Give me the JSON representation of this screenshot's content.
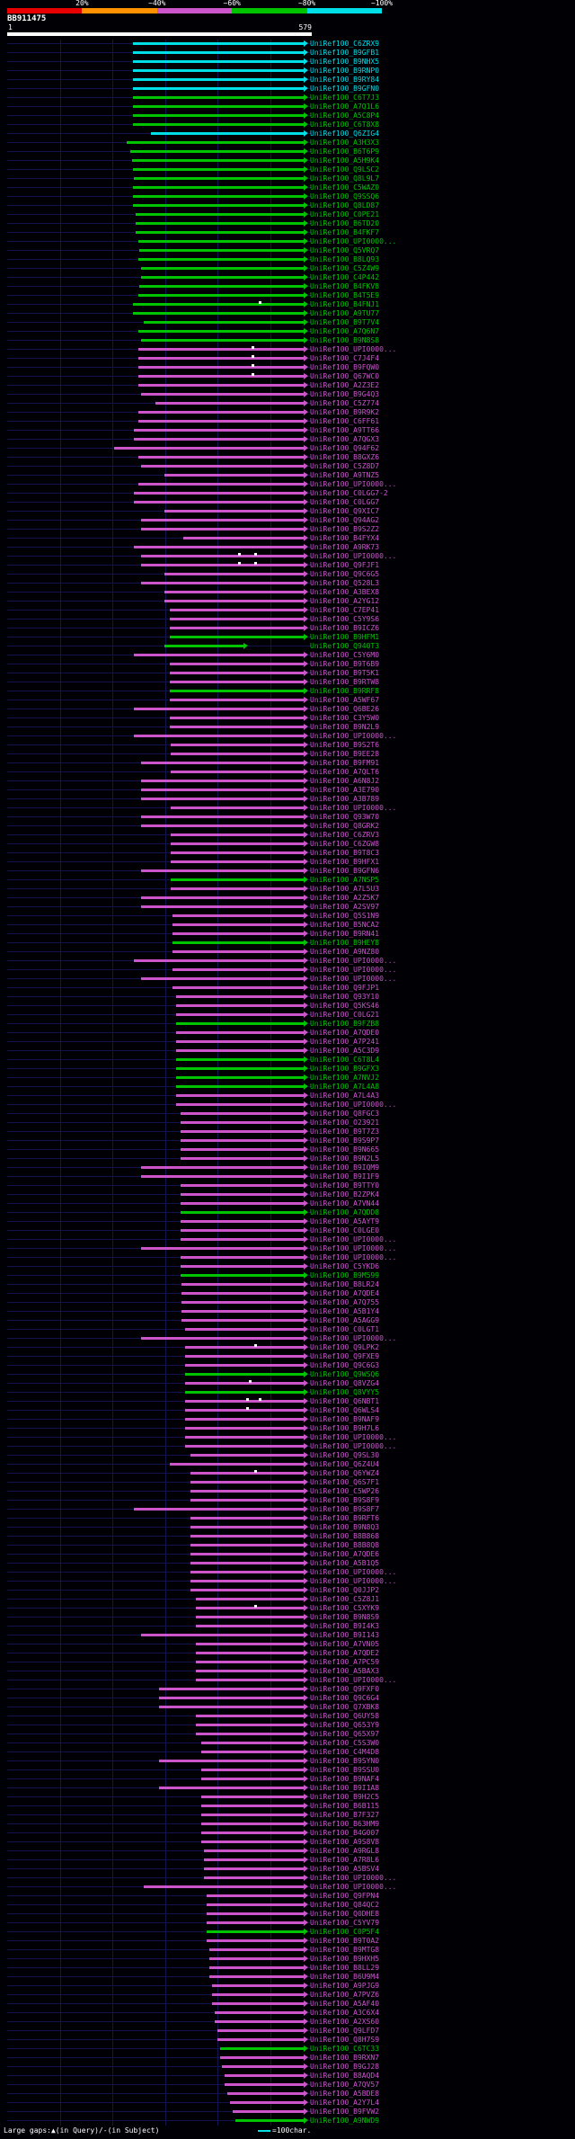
{
  "palette": {
    "cy": "#00dfe8",
    "gr": "#00c400",
    "mg": "#cc55cc",
    "rd": "#e80000",
    "or": "#ff9100",
    "white": "#ffffff",
    "baseline": "#12124f"
  },
  "chart_data": {
    "type": "bar",
    "orientation": "horizontal",
    "title": "BB911475",
    "x_axis": {
      "label_start": "1",
      "label_end": "579",
      "min": 1,
      "max": 579,
      "unit": "char",
      "gridlines": [
        100,
        200,
        300,
        400,
        500
      ]
    },
    "identity_scale": {
      "labels": [
        "20%",
        "~40%",
        "~60%",
        "~80%",
        "~100%"
      ],
      "segments": [
        "rd",
        "or",
        "mg",
        "gr",
        "cy"
      ]
    },
    "bars_prefix": "UniRef100_",
    "bars": [
      {
        "id": "C6ZRX9",
        "c": "cy",
        "s": 240
      },
      {
        "id": "B9GFB1",
        "c": "cy",
        "s": 240
      },
      {
        "id": "B9NHX5",
        "c": "cy",
        "s": 240
      },
      {
        "id": "B9RNP0",
        "c": "cy",
        "s": 240
      },
      {
        "id": "B9RY84",
        "c": "cy",
        "s": 240
      },
      {
        "id": "B9GFN0",
        "c": "cy",
        "s": 240
      },
      {
        "id": "C6T7J3",
        "c": "gr",
        "s": 240
      },
      {
        "id": "A7Q1L6",
        "c": "gr",
        "s": 240
      },
      {
        "id": "A5C8P4",
        "c": "gr",
        "s": 240
      },
      {
        "id": "C6T8X8",
        "c": "gr",
        "s": 240
      },
      {
        "id": "Q6ZIG4",
        "c": "cy",
        "s": 275
      },
      {
        "id": "A3H3X3",
        "c": "gr",
        "s": 228
      },
      {
        "id": "B6T6P9",
        "c": "gr",
        "s": 235
      },
      {
        "id": "A5H9K4",
        "c": "gr",
        "s": 238
      },
      {
        "id": "Q9LSC2",
        "c": "gr",
        "s": 240
      },
      {
        "id": "Q8L9L7",
        "c": "gr",
        "s": 242
      },
      {
        "id": "C5WAZ0",
        "c": "gr",
        "s": 240
      },
      {
        "id": "Q9SSQ6",
        "c": "gr",
        "s": 240
      },
      {
        "id": "Q8LD87",
        "c": "gr",
        "s": 240
      },
      {
        "id": "C0PE21",
        "c": "gr",
        "s": 246
      },
      {
        "id": "B6TD20",
        "c": "gr",
        "s": 246
      },
      {
        "id": "B4FKF7",
        "c": "gr",
        "s": 246
      },
      {
        "id": "UPI0000...",
        "c": "gr",
        "s": 250
      },
      {
        "id": "Q5VRQ7",
        "c": "gr",
        "s": 252
      },
      {
        "id": "B8LQ93",
        "c": "gr",
        "s": 250
      },
      {
        "id": "C5Z4W9",
        "c": "gr",
        "s": 255
      },
      {
        "id": "C4P442",
        "c": "gr",
        "s": 255
      },
      {
        "id": "B4FKV8",
        "c": "gr",
        "s": 252
      },
      {
        "id": "B4T5E9",
        "c": "gr",
        "s": 250
      },
      {
        "id": "B4FNJ1",
        "c": "gr",
        "s": 240,
        "g": [
          480
        ]
      },
      {
        "id": "A9TU77",
        "c": "gr",
        "s": 240
      },
      {
        "id": "B9T7V4",
        "c": "gr",
        "s": 260
      },
      {
        "id": "A7Q6N7",
        "c": "gr",
        "s": 250
      },
      {
        "id": "B9N8S8",
        "c": "gr",
        "s": 255
      },
      {
        "id": "UPI0000...",
        "c": "mg",
        "s": 250,
        "g": [
          465
        ]
      },
      {
        "id": "C7J4F4",
        "c": "mg",
        "s": 250,
        "g": [
          465
        ]
      },
      {
        "id": "B9FQW0",
        "c": "mg",
        "s": 250,
        "g": [
          465
        ]
      },
      {
        "id": "Q67WC0",
        "c": "mg",
        "s": 250,
        "g": [
          465
        ]
      },
      {
        "id": "A2Z3E2",
        "c": "mg",
        "s": 250
      },
      {
        "id": "B9G4Q3",
        "c": "mg",
        "s": 255
      },
      {
        "id": "C5Z774",
        "c": "mg",
        "s": 282
      },
      {
        "id": "B9R9K2",
        "c": "mg",
        "s": 250
      },
      {
        "id": "C6FF61",
        "c": "mg",
        "s": 250
      },
      {
        "id": "A9TT66",
        "c": "mg",
        "s": 242
      },
      {
        "id": "A7QGX3",
        "c": "mg",
        "s": 242
      },
      {
        "id": "Q94F62",
        "c": "mg",
        "s": 205
      },
      {
        "id": "B8GXZ6",
        "c": "mg",
        "s": 250
      },
      {
        "id": "C5Z8D7",
        "c": "mg",
        "s": 256
      },
      {
        "id": "A9TNZ5",
        "c": "mg",
        "s": 300
      },
      {
        "id": "UPI0000...",
        "c": "mg",
        "s": 250
      },
      {
        "id": "C0LGG7-2",
        "c": "mg",
        "s": 242
      },
      {
        "id": "C0LGG7",
        "c": "mg",
        "s": 242
      },
      {
        "id": "Q9XIC7",
        "c": "mg",
        "s": 300
      },
      {
        "id": "Q94AG2",
        "c": "mg",
        "s": 256
      },
      {
        "id": "B9S2Z2",
        "c": "mg",
        "s": 256
      },
      {
        "id": "B4FYX4",
        "c": "mg",
        "s": 335
      },
      {
        "id": "A9RK73",
        "c": "mg",
        "s": 242
      },
      {
        "id": "UPI0000...",
        "c": "mg",
        "s": 256,
        "g": [
          440,
          470
        ]
      },
      {
        "id": "Q9FJF1",
        "c": "mg",
        "s": 256,
        "g": [
          440,
          470
        ]
      },
      {
        "id": "Q9C6G5",
        "c": "mg",
        "s": 300
      },
      {
        "id": "Q528L3",
        "c": "mg",
        "s": 256
      },
      {
        "id": "A3BEX8",
        "c": "mg",
        "s": 300
      },
      {
        "id": "A2YG12",
        "c": "mg",
        "s": 300
      },
      {
        "id": "C7EP41",
        "c": "mg",
        "s": 310
      },
      {
        "id": "C5Y9S6",
        "c": "mg",
        "s": 310
      },
      {
        "id": "B9ICZ6",
        "c": "mg",
        "s": 310
      },
      {
        "id": "B9HFM1",
        "c": "gr",
        "s": 310
      },
      {
        "id": "Q940T3",
        "c": "gr",
        "s": 300,
        "e": 450
      },
      {
        "id": "C5Y6M0",
        "c": "mg",
        "s": 242
      },
      {
        "id": "B9T6B9",
        "c": "mg",
        "s": 310
      },
      {
        "id": "B9T5K1",
        "c": "mg",
        "s": 310
      },
      {
        "id": "B9RTW8",
        "c": "mg",
        "s": 310
      },
      {
        "id": "B9RRF8",
        "c": "gr",
        "s": 310
      },
      {
        "id": "A5WF67",
        "c": "mg",
        "s": 310
      },
      {
        "id": "Q6BE26",
        "c": "mg",
        "s": 242
      },
      {
        "id": "C3Y5W0",
        "c": "mg",
        "s": 310
      },
      {
        "id": "B9N2L9",
        "c": "mg",
        "s": 310
      },
      {
        "id": "UPI0000...",
        "c": "mg",
        "s": 242
      },
      {
        "id": "B9S2T6",
        "c": "mg",
        "s": 312
      },
      {
        "id": "B9EE28",
        "c": "mg",
        "s": 312
      },
      {
        "id": "B9FM91",
        "c": "mg",
        "s": 256
      },
      {
        "id": "A7QLT6",
        "c": "mg",
        "s": 312
      },
      {
        "id": "A6N8J2",
        "c": "mg",
        "s": 256
      },
      {
        "id": "A3E790",
        "c": "mg",
        "s": 256
      },
      {
        "id": "A3B789",
        "c": "mg",
        "s": 256
      },
      {
        "id": "UPI0000...",
        "c": "mg",
        "s": 312
      },
      {
        "id": "Q93W70",
        "c": "mg",
        "s": 256
      },
      {
        "id": "Q8GRK2",
        "c": "mg",
        "s": 256
      },
      {
        "id": "C6ZRV3",
        "c": "mg",
        "s": 312
      },
      {
        "id": "C6ZGW8",
        "c": "mg",
        "s": 312
      },
      {
        "id": "B9T8C3",
        "c": "mg",
        "s": 312
      },
      {
        "id": "B9HFX1",
        "c": "mg",
        "s": 312
      },
      {
        "id": "B9GFN6",
        "c": "mg",
        "s": 256
      },
      {
        "id": "A7NSP5",
        "c": "gr",
        "s": 312
      },
      {
        "id": "A7L5U3",
        "c": "mg",
        "s": 312
      },
      {
        "id": "A2Z5K7",
        "c": "mg",
        "s": 256
      },
      {
        "id": "A2SV97",
        "c": "mg",
        "s": 256
      },
      {
        "id": "Q5S1N9",
        "c": "mg",
        "s": 315
      },
      {
        "id": "B5NCA2",
        "c": "mg",
        "s": 315
      },
      {
        "id": "B9RN41",
        "c": "mg",
        "s": 315
      },
      {
        "id": "B9HEY8",
        "c": "gr",
        "s": 315
      },
      {
        "id": "A9NZ80",
        "c": "mg",
        "s": 315
      },
      {
        "id": "UPI0000...",
        "c": "mg",
        "s": 242
      },
      {
        "id": "UPI0000...",
        "c": "mg",
        "s": 315
      },
      {
        "id": "UPI0000...",
        "c": "mg",
        "s": 256
      },
      {
        "id": "Q9FJP1",
        "c": "mg",
        "s": 315
      },
      {
        "id": "Q93Y10",
        "c": "mg",
        "s": 322
      },
      {
        "id": "Q5KS46",
        "c": "mg",
        "s": 322
      },
      {
        "id": "C0LG21",
        "c": "mg",
        "s": 322
      },
      {
        "id": "B9FZB8",
        "c": "gr",
        "s": 322
      },
      {
        "id": "A7QDE0",
        "c": "mg",
        "s": 322
      },
      {
        "id": "A7P241",
        "c": "mg",
        "s": 322
      },
      {
        "id": "A5C3D9",
        "c": "mg",
        "s": 322
      },
      {
        "id": "C6T8L4",
        "c": "gr",
        "s": 322
      },
      {
        "id": "B9GFX3",
        "c": "gr",
        "s": 322
      },
      {
        "id": "A7NVJ2",
        "c": "gr",
        "s": 322
      },
      {
        "id": "A7L4A8",
        "c": "gr",
        "s": 322
      },
      {
        "id": "A7L4A3",
        "c": "mg",
        "s": 322
      },
      {
        "id": "UPI0000...",
        "c": "mg",
        "s": 322
      },
      {
        "id": "Q8FGC3",
        "c": "mg",
        "s": 330
      },
      {
        "id": "O23921",
        "c": "mg",
        "s": 330
      },
      {
        "id": "B9T7Z3",
        "c": "mg",
        "s": 330
      },
      {
        "id": "B9S9P7",
        "c": "mg",
        "s": 330
      },
      {
        "id": "B9N665",
        "c": "mg",
        "s": 330
      },
      {
        "id": "B9N2L5",
        "c": "mg",
        "s": 330
      },
      {
        "id": "B9IQM9",
        "c": "mg",
        "s": 256
      },
      {
        "id": "B9I1F9",
        "c": "mg",
        "s": 256
      },
      {
        "id": "B9TTY0",
        "c": "mg",
        "s": 330
      },
      {
        "id": "B2ZPK4",
        "c": "mg",
        "s": 330
      },
      {
        "id": "A7VN44",
        "c": "mg",
        "s": 330
      },
      {
        "id": "A7QDD8",
        "c": "gr",
        "s": 330
      },
      {
        "id": "A5AYT9",
        "c": "mg",
        "s": 330
      },
      {
        "id": "C0LGE0",
        "c": "mg",
        "s": 330
      },
      {
        "id": "UPI0000...",
        "c": "mg",
        "s": 330
      },
      {
        "id": "UPI0000...",
        "c": "mg",
        "s": 256
      },
      {
        "id": "UPI0000...",
        "c": "mg",
        "s": 330
      },
      {
        "id": "C5YKD6",
        "c": "mg",
        "s": 330
      },
      {
        "id": "B9M599",
        "c": "gr",
        "s": 330
      },
      {
        "id": "B8LR24",
        "c": "mg",
        "s": 332
      },
      {
        "id": "A7QDE4",
        "c": "mg",
        "s": 332
      },
      {
        "id": "A7Q755",
        "c": "mg",
        "s": 332
      },
      {
        "id": "A5B1Y4",
        "c": "mg",
        "s": 332
      },
      {
        "id": "A5AGG9",
        "c": "mg",
        "s": 332
      },
      {
        "id": "C0LGT1",
        "c": "mg",
        "s": 340
      },
      {
        "id": "UPI0000...",
        "c": "mg",
        "s": 256
      },
      {
        "id": "Q9LPK2",
        "c": "mg",
        "s": 340,
        "g": [
          470
        ]
      },
      {
        "id": "Q9FXE9",
        "c": "mg",
        "s": 340
      },
      {
        "id": "Q9C6G3",
        "c": "mg",
        "s": 340
      },
      {
        "id": "Q9WSQ6",
        "c": "gr",
        "s": 340
      },
      {
        "id": "Q8VZG4",
        "c": "mg",
        "s": 340,
        "g": [
          460
        ]
      },
      {
        "id": "Q8VYY5",
        "c": "gr",
        "s": 340
      },
      {
        "id": "Q6NBT1",
        "c": "mg",
        "s": 340,
        "g": [
          455,
          480
        ]
      },
      {
        "id": "Q6WLS4",
        "c": "mg",
        "s": 340,
        "g": [
          455
        ]
      },
      {
        "id": "B9NAF9",
        "c": "mg",
        "s": 340
      },
      {
        "id": "B9H7L6",
        "c": "mg",
        "s": 340
      },
      {
        "id": "UPI0000...",
        "c": "mg",
        "s": 340
      },
      {
        "id": "UPI0000...",
        "c": "mg",
        "s": 340
      },
      {
        "id": "Q9SL30",
        "c": "mg",
        "s": 350
      },
      {
        "id": "Q6Z4U4",
        "c": "mg",
        "s": 310
      },
      {
        "id": "Q6YWZ4",
        "c": "mg",
        "s": 350,
        "g": [
          470
        ]
      },
      {
        "id": "Q6S7F1",
        "c": "mg",
        "s": 350
      },
      {
        "id": "C5WP26",
        "c": "mg",
        "s": 350
      },
      {
        "id": "B9S8F9",
        "c": "mg",
        "s": 350
      },
      {
        "id": "B9S8F7",
        "c": "mg",
        "s": 242
      },
      {
        "id": "B9RFT6",
        "c": "mg",
        "s": 350
      },
      {
        "id": "B9N8Q3",
        "c": "mg",
        "s": 350
      },
      {
        "id": "B8B868",
        "c": "mg",
        "s": 350
      },
      {
        "id": "B8B8Q8",
        "c": "mg",
        "s": 350
      },
      {
        "id": "A7QDE6",
        "c": "mg",
        "s": 350
      },
      {
        "id": "A5B1Q5",
        "c": "mg",
        "s": 350
      },
      {
        "id": "UPI0000...",
        "c": "mg",
        "s": 350
      },
      {
        "id": "UPI0000...",
        "c": "mg",
        "s": 350
      },
      {
        "id": "Q0JJP2",
        "c": "mg",
        "s": 350
      },
      {
        "id": "C5Z8J1",
        "c": "mg",
        "s": 360
      },
      {
        "id": "C5XYK9",
        "c": "mg",
        "s": 360,
        "g": [
          470
        ]
      },
      {
        "id": "B9N8S9",
        "c": "mg",
        "s": 360
      },
      {
        "id": "B9I4K3",
        "c": "mg",
        "s": 360
      },
      {
        "id": "B9I143",
        "c": "mg",
        "s": 256
      },
      {
        "id": "A7VN05",
        "c": "mg",
        "s": 360
      },
      {
        "id": "A7QDE2",
        "c": "mg",
        "s": 360
      },
      {
        "id": "A7PC59",
        "c": "mg",
        "s": 360
      },
      {
        "id": "A5BAX3",
        "c": "mg",
        "s": 360
      },
      {
        "id": "UPI0000...",
        "c": "mg",
        "s": 360
      },
      {
        "id": "Q9FXF0",
        "c": "mg",
        "s": 290
      },
      {
        "id": "Q9C6G4",
        "c": "mg",
        "s": 290
      },
      {
        "id": "Q7XBK8",
        "c": "mg",
        "s": 290
      },
      {
        "id": "Q6UY58",
        "c": "mg",
        "s": 360
      },
      {
        "id": "Q653Y9",
        "c": "mg",
        "s": 360
      },
      {
        "id": "Q65X97",
        "c": "mg",
        "s": 360
      },
      {
        "id": "C5S3W0",
        "c": "mg",
        "s": 370
      },
      {
        "id": "C4M4D8",
        "c": "mg",
        "s": 370
      },
      {
        "id": "B9SYN0",
        "c": "mg",
        "s": 290
      },
      {
        "id": "B9SSU0",
        "c": "mg",
        "s": 370
      },
      {
        "id": "B9NAF4",
        "c": "mg",
        "s": 370
      },
      {
        "id": "B9I1A8",
        "c": "mg",
        "s": 290
      },
      {
        "id": "B9H2C5",
        "c": "mg",
        "s": 370
      },
      {
        "id": "B6B115",
        "c": "mg",
        "s": 370
      },
      {
        "id": "B7F327",
        "c": "mg",
        "s": 370
      },
      {
        "id": "B63HM9",
        "c": "mg",
        "s": 370
      },
      {
        "id": "B4G007",
        "c": "mg",
        "s": 370
      },
      {
        "id": "A9S8V8",
        "c": "mg",
        "s": 370
      },
      {
        "id": "A9RGL8",
        "c": "mg",
        "s": 375
      },
      {
        "id": "A7R8L6",
        "c": "mg",
        "s": 375
      },
      {
        "id": "A5BSV4",
        "c": "mg",
        "s": 375
      },
      {
        "id": "UPI0000...",
        "c": "mg",
        "s": 375
      },
      {
        "id": "UPI0000...",
        "c": "mg",
        "s": 260
      },
      {
        "id": "Q9FPN4",
        "c": "mg",
        "s": 380
      },
      {
        "id": "Q84QC2",
        "c": "mg",
        "s": 380
      },
      {
        "id": "Q0DHE8",
        "c": "mg",
        "s": 380
      },
      {
        "id": "C5YV79",
        "c": "mg",
        "s": 380
      },
      {
        "id": "C0P5F4",
        "c": "gr",
        "s": 380
      },
      {
        "id": "B9T0A2",
        "c": "mg",
        "s": 380
      },
      {
        "id": "B9MTG8",
        "c": "mg",
        "s": 385
      },
      {
        "id": "B9HXH5",
        "c": "mg",
        "s": 385
      },
      {
        "id": "B8LL29",
        "c": "mg",
        "s": 385
      },
      {
        "id": "B6U9M4",
        "c": "mg",
        "s": 385
      },
      {
        "id": "A9PJG9",
        "c": "mg",
        "s": 390
      },
      {
        "id": "A7PVZ6",
        "c": "mg",
        "s": 390
      },
      {
        "id": "A5AF40",
        "c": "mg",
        "s": 390
      },
      {
        "id": "A3C6X4",
        "c": "mg",
        "s": 395
      },
      {
        "id": "A2XS60",
        "c": "mg",
        "s": 395
      },
      {
        "id": "Q9LFD7",
        "c": "mg",
        "s": 400
      },
      {
        "id": "Q8H7S9",
        "c": "mg",
        "s": 400
      },
      {
        "id": "C6TC33",
        "c": "gr",
        "s": 405
      },
      {
        "id": "B9RXN7",
        "c": "mg",
        "s": 405
      },
      {
        "id": "B9GJ28",
        "c": "mg",
        "s": 410
      },
      {
        "id": "B8AQD4",
        "c": "mg",
        "s": 415
      },
      {
        "id": "A7QV57",
        "c": "mg",
        "s": 415
      },
      {
        "id": "A5BDE8",
        "c": "mg",
        "s": 420
      },
      {
        "id": "A2Y7L4",
        "c": "mg",
        "s": 425
      },
      {
        "id": "B9FVW2",
        "c": "mg",
        "s": 430
      },
      {
        "id": "A9NWD9",
        "c": "gr",
        "s": 435
      }
    ],
    "legend": {
      "gaps_note": "Large gaps:▲(in Query)/-(in Subject)",
      "scale_note": "=100char.",
      "scale_line_color_key": "cy"
    }
  }
}
